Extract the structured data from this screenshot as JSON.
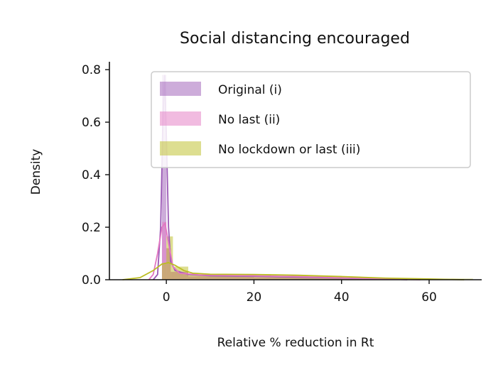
{
  "chart_data": {
    "type": "area",
    "title": "Social distancing encouraged",
    "xlabel": "Relative % reduction in Rt",
    "ylabel": "Density",
    "xlim": [
      -13,
      72
    ],
    "ylim": [
      0,
      0.83
    ],
    "xticks": [
      0,
      20,
      40,
      60
    ],
    "yticks": [
      0.0,
      0.2,
      0.4,
      0.6,
      0.8
    ],
    "xtick_labels": [
      "0",
      "20",
      "40",
      "60"
    ],
    "ytick_labels": [
      "0.0",
      "0.2",
      "0.4",
      "0.6",
      "0.8"
    ],
    "legend_position": "top-right",
    "grid": false,
    "series": [
      {
        "name": "Original (i)",
        "color": "#9b59b6",
        "histogram": [
          {
            "bin_start": -1,
            "bin_end": 0,
            "density": 0.78
          },
          {
            "bin_start": 0,
            "bin_end": 1,
            "density": 0.12
          },
          {
            "bin_start": 1,
            "bin_end": 5,
            "density": 0.03
          },
          {
            "bin_start": 5,
            "bin_end": 20,
            "density": 0.012
          },
          {
            "bin_start": 20,
            "bin_end": 40,
            "density": 0.008
          },
          {
            "bin_start": 40,
            "bin_end": 55,
            "density": 0.003
          }
        ],
        "kde": [
          [
            -3,
            0.0
          ],
          [
            -2,
            0.02
          ],
          [
            -1.3,
            0.2
          ],
          [
            -0.8,
            0.6
          ],
          [
            -0.4,
            0.78
          ],
          [
            0,
            0.55
          ],
          [
            0.5,
            0.2
          ],
          [
            1,
            0.07
          ],
          [
            2,
            0.035
          ],
          [
            5,
            0.02
          ],
          [
            10,
            0.015
          ],
          [
            20,
            0.013
          ],
          [
            30,
            0.01
          ],
          [
            40,
            0.006
          ],
          [
            50,
            0.003
          ],
          [
            55,
            0.0
          ]
        ]
      },
      {
        "name": "No last (ii)",
        "color": "#e377c2",
        "histogram": [
          {
            "bin_start": -1,
            "bin_end": 0,
            "density": 0.22
          },
          {
            "bin_start": 0,
            "bin_end": 1,
            "density": 0.12
          },
          {
            "bin_start": 1,
            "bin_end": 5,
            "density": 0.03
          },
          {
            "bin_start": 5,
            "bin_end": 20,
            "density": 0.015
          },
          {
            "bin_start": 20,
            "bin_end": 40,
            "density": 0.01
          },
          {
            "bin_start": 40,
            "bin_end": 55,
            "density": 0.004
          }
        ],
        "kde": [
          [
            -4,
            0.0
          ],
          [
            -3,
            0.02
          ],
          [
            -2,
            0.1
          ],
          [
            -1,
            0.2
          ],
          [
            -0.3,
            0.215
          ],
          [
            0.5,
            0.14
          ],
          [
            1.5,
            0.05
          ],
          [
            3,
            0.025
          ],
          [
            8,
            0.018
          ],
          [
            20,
            0.015
          ],
          [
            30,
            0.012
          ],
          [
            40,
            0.007
          ],
          [
            50,
            0.003
          ],
          [
            58,
            0.0
          ]
        ]
      },
      {
        "name": "No lockdown or last (iii)",
        "color": "#bcbd22",
        "histogram": [
          {
            "bin_start": -1,
            "bin_end": 0,
            "density": 0.06
          },
          {
            "bin_start": 0,
            "bin_end": 1.5,
            "density": 0.165
          },
          {
            "bin_start": 1.5,
            "bin_end": 5,
            "density": 0.05
          },
          {
            "bin_start": 5,
            "bin_end": 20,
            "density": 0.02
          },
          {
            "bin_start": 20,
            "bin_end": 40,
            "density": 0.015
          },
          {
            "bin_start": 40,
            "bin_end": 70,
            "density": 0.004
          }
        ],
        "kde": [
          [
            -10,
            0.0
          ],
          [
            -6,
            0.008
          ],
          [
            -3,
            0.035
          ],
          [
            -1,
            0.06
          ],
          [
            0.5,
            0.065
          ],
          [
            2,
            0.055
          ],
          [
            4,
            0.035
          ],
          [
            6,
            0.025
          ],
          [
            10,
            0.021
          ],
          [
            20,
            0.02
          ],
          [
            30,
            0.017
          ],
          [
            40,
            0.012
          ],
          [
            50,
            0.006
          ],
          [
            60,
            0.003
          ],
          [
            68,
            0.0
          ]
        ]
      }
    ]
  }
}
